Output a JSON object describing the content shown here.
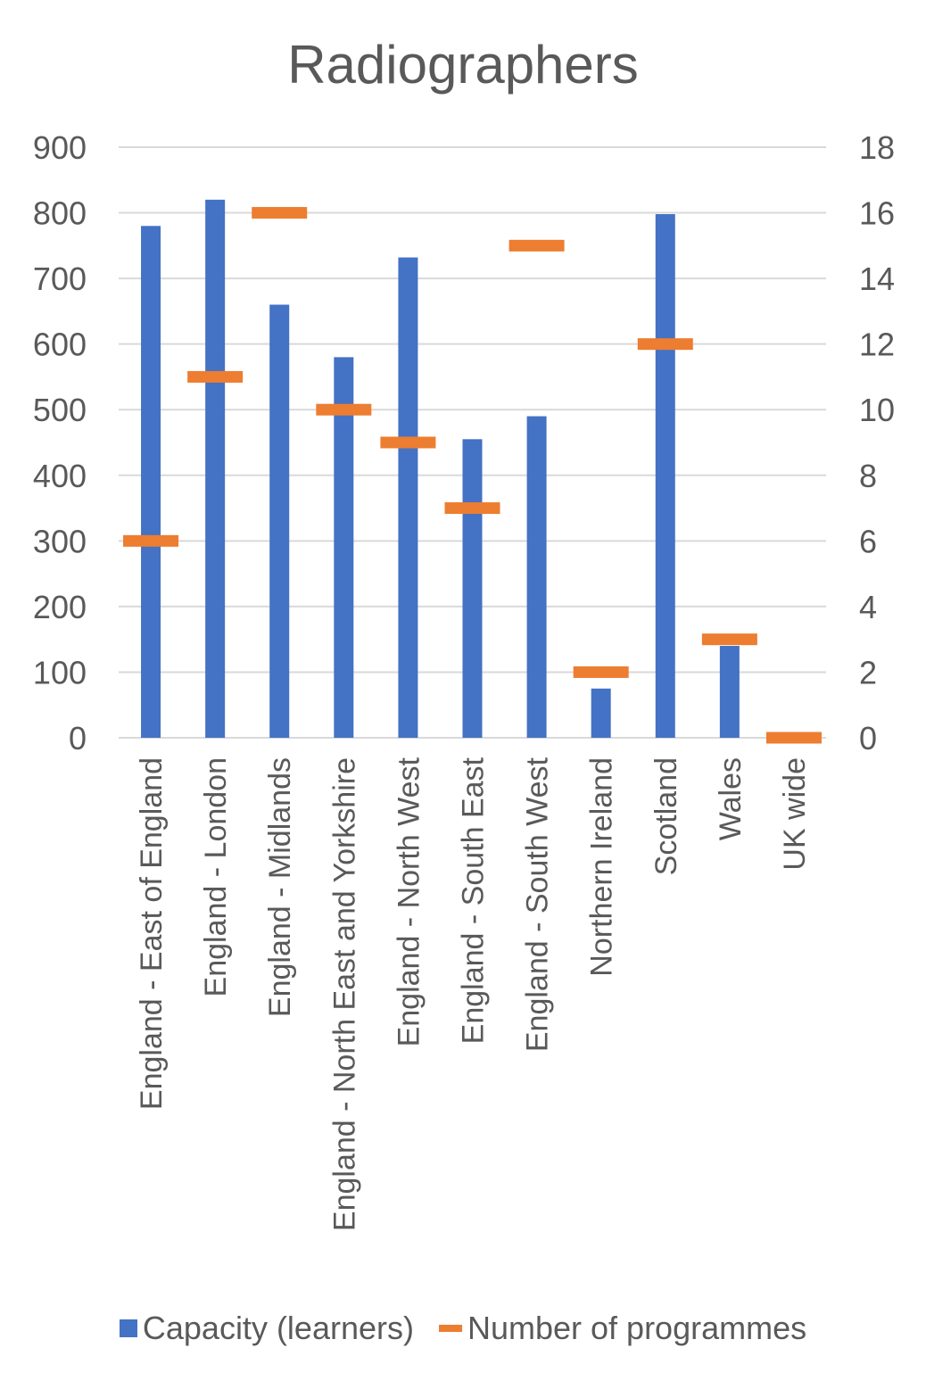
{
  "chart_data": {
    "type": "bar",
    "title": "Radiographers",
    "categories": [
      "England - East of England",
      "England - London",
      "England - Midlands",
      "England - North East and Yorkshire",
      "England - North West",
      "England - South East",
      "England - South West",
      "Northern Ireland",
      "Scotland",
      "Wales",
      "UK wide"
    ],
    "series": [
      {
        "name": "Capacity (learners)",
        "type": "bar",
        "axis": "left",
        "color": "#4472C4",
        "values": [
          780,
          820,
          660,
          580,
          732,
          455,
          490,
          75,
          798,
          140,
          0
        ]
      },
      {
        "name": "Number of programmes",
        "type": "marker",
        "axis": "right",
        "color": "#ED7D31",
        "values": [
          6,
          11,
          16,
          10,
          9,
          7,
          15,
          2,
          12,
          3,
          0
        ]
      }
    ],
    "y_left": {
      "min": 0,
      "max": 900,
      "step": 100,
      "ticks": [
        "0",
        "100",
        "200",
        "300",
        "400",
        "500",
        "600",
        "700",
        "800",
        "900"
      ]
    },
    "y_right": {
      "min": 0,
      "max": 18,
      "step": 2,
      "ticks": [
        "0",
        "2",
        "4",
        "6",
        "8",
        "10",
        "12",
        "14",
        "16",
        "18"
      ]
    },
    "grid": true,
    "legend_position": "bottom"
  }
}
